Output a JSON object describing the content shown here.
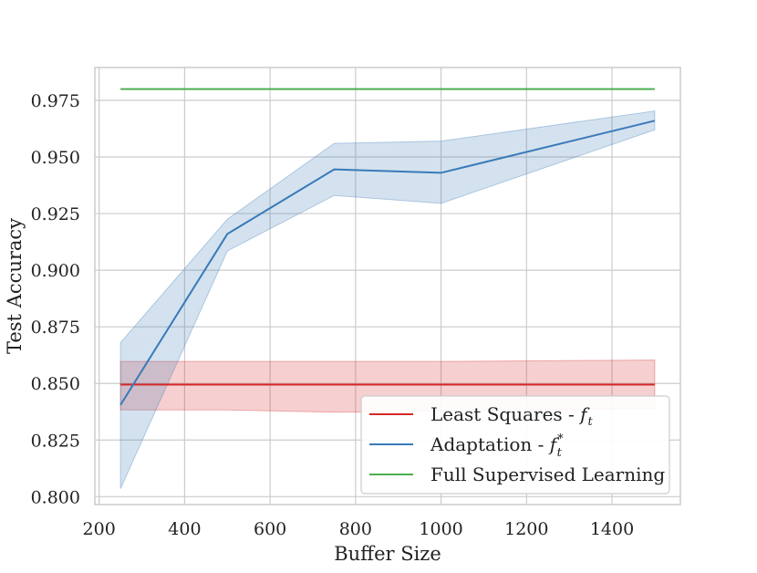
{
  "chart_data": {
    "type": "line",
    "title": "",
    "xlabel": "Buffer Size",
    "ylabel": "Test Accuracy",
    "xlim": [
      190,
      1560
    ],
    "ylim": [
      0.7965,
      0.9895
    ],
    "xticks": [
      200,
      400,
      600,
      800,
      1000,
      1200,
      1400
    ],
    "yticks": [
      0.8,
      0.825,
      0.85,
      0.875,
      0.9,
      0.925,
      0.95,
      0.975
    ],
    "grid": true,
    "legend_position": "lower-right",
    "colors": {
      "least_squares": "#d62728",
      "adaptation": "#3a7ab8",
      "full_supervised": "#4caf50",
      "grid": "#cccccc",
      "frame": "#cccccc"
    },
    "series": [
      {
        "name": "Least Squares - f_t",
        "legend_main": "Least Squares - ",
        "legend_var": "f",
        "legend_sub": "t",
        "legend_sup": "",
        "x": [
          250,
          500,
          750,
          1000,
          1250,
          1500
        ],
        "y": [
          0.8495,
          0.8495,
          0.8495,
          0.8495,
          0.8495,
          0.8495
        ],
        "lower": [
          0.8383,
          0.8383,
          0.8373,
          0.8378,
          0.8385,
          0.8388
        ],
        "upper": [
          0.8597,
          0.8597,
          0.8597,
          0.8597,
          0.86,
          0.8603
        ]
      },
      {
        "name": "Adaptation - f_t^*",
        "legend_main": "Adaptation - ",
        "legend_var": "f",
        "legend_sub": "t",
        "legend_sup": "*",
        "x": [
          250,
          500,
          750,
          1000,
          1500
        ],
        "y": [
          0.8405,
          0.916,
          0.9445,
          0.943,
          0.966
        ],
        "lower": [
          0.8035,
          0.9085,
          0.933,
          0.9295,
          0.962
        ],
        "upper": [
          0.868,
          0.9225,
          0.956,
          0.957,
          0.9703
        ]
      },
      {
        "name": "Full Supervised Learning",
        "legend_main": "Full Supervised Learning",
        "legend_var": "",
        "legend_sub": "",
        "legend_sup": "",
        "x": [
          250,
          1500
        ],
        "y": [
          0.98,
          0.98
        ],
        "lower": null,
        "upper": null
      }
    ]
  }
}
